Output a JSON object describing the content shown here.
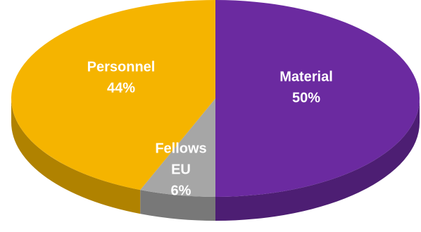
{
  "chart_data": {
    "type": "pie",
    "title": "",
    "slices": [
      {
        "label": "Material",
        "value": 50,
        "value_label": "50%",
        "color": "#6B2AA0"
      },
      {
        "label": "Fellows EU",
        "value": 6,
        "value_label": "6%",
        "color": "#A6A6A6"
      },
      {
        "label": "Personnel",
        "value": 44,
        "value_label": "44%",
        "color": "#F5B400"
      }
    ],
    "style": "3d",
    "legend": "none"
  }
}
